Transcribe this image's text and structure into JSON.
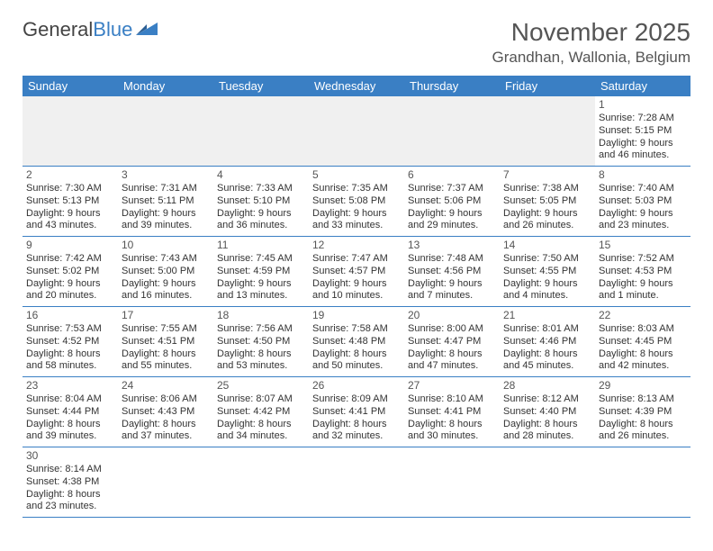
{
  "logo": {
    "text1": "General",
    "text2": "Blue"
  },
  "title": "November 2025",
  "location": "Grandhan, Wallonia, Belgium",
  "colors": {
    "header_bg": "#3a7fc4",
    "header_fg": "#ffffff",
    "grid_line": "#3a7fc4",
    "empty_bg": "#f0f0f0",
    "text": "#333333"
  },
  "weekdays": [
    "Sunday",
    "Monday",
    "Tuesday",
    "Wednesday",
    "Thursday",
    "Friday",
    "Saturday"
  ],
  "weeks": [
    [
      null,
      null,
      null,
      null,
      null,
      null,
      {
        "n": "1",
        "sr": "Sunrise: 7:28 AM",
        "ss": "Sunset: 5:15 PM",
        "d1": "Daylight: 9 hours",
        "d2": "and 46 minutes."
      }
    ],
    [
      {
        "n": "2",
        "sr": "Sunrise: 7:30 AM",
        "ss": "Sunset: 5:13 PM",
        "d1": "Daylight: 9 hours",
        "d2": "and 43 minutes."
      },
      {
        "n": "3",
        "sr": "Sunrise: 7:31 AM",
        "ss": "Sunset: 5:11 PM",
        "d1": "Daylight: 9 hours",
        "d2": "and 39 minutes."
      },
      {
        "n": "4",
        "sr": "Sunrise: 7:33 AM",
        "ss": "Sunset: 5:10 PM",
        "d1": "Daylight: 9 hours",
        "d2": "and 36 minutes."
      },
      {
        "n": "5",
        "sr": "Sunrise: 7:35 AM",
        "ss": "Sunset: 5:08 PM",
        "d1": "Daylight: 9 hours",
        "d2": "and 33 minutes."
      },
      {
        "n": "6",
        "sr": "Sunrise: 7:37 AM",
        "ss": "Sunset: 5:06 PM",
        "d1": "Daylight: 9 hours",
        "d2": "and 29 minutes."
      },
      {
        "n": "7",
        "sr": "Sunrise: 7:38 AM",
        "ss": "Sunset: 5:05 PM",
        "d1": "Daylight: 9 hours",
        "d2": "and 26 minutes."
      },
      {
        "n": "8",
        "sr": "Sunrise: 7:40 AM",
        "ss": "Sunset: 5:03 PM",
        "d1": "Daylight: 9 hours",
        "d2": "and 23 minutes."
      }
    ],
    [
      {
        "n": "9",
        "sr": "Sunrise: 7:42 AM",
        "ss": "Sunset: 5:02 PM",
        "d1": "Daylight: 9 hours",
        "d2": "and 20 minutes."
      },
      {
        "n": "10",
        "sr": "Sunrise: 7:43 AM",
        "ss": "Sunset: 5:00 PM",
        "d1": "Daylight: 9 hours",
        "d2": "and 16 minutes."
      },
      {
        "n": "11",
        "sr": "Sunrise: 7:45 AM",
        "ss": "Sunset: 4:59 PM",
        "d1": "Daylight: 9 hours",
        "d2": "and 13 minutes."
      },
      {
        "n": "12",
        "sr": "Sunrise: 7:47 AM",
        "ss": "Sunset: 4:57 PM",
        "d1": "Daylight: 9 hours",
        "d2": "and 10 minutes."
      },
      {
        "n": "13",
        "sr": "Sunrise: 7:48 AM",
        "ss": "Sunset: 4:56 PM",
        "d1": "Daylight: 9 hours",
        "d2": "and 7 minutes."
      },
      {
        "n": "14",
        "sr": "Sunrise: 7:50 AM",
        "ss": "Sunset: 4:55 PM",
        "d1": "Daylight: 9 hours",
        "d2": "and 4 minutes."
      },
      {
        "n": "15",
        "sr": "Sunrise: 7:52 AM",
        "ss": "Sunset: 4:53 PM",
        "d1": "Daylight: 9 hours",
        "d2": "and 1 minute."
      }
    ],
    [
      {
        "n": "16",
        "sr": "Sunrise: 7:53 AM",
        "ss": "Sunset: 4:52 PM",
        "d1": "Daylight: 8 hours",
        "d2": "and 58 minutes."
      },
      {
        "n": "17",
        "sr": "Sunrise: 7:55 AM",
        "ss": "Sunset: 4:51 PM",
        "d1": "Daylight: 8 hours",
        "d2": "and 55 minutes."
      },
      {
        "n": "18",
        "sr": "Sunrise: 7:56 AM",
        "ss": "Sunset: 4:50 PM",
        "d1": "Daylight: 8 hours",
        "d2": "and 53 minutes."
      },
      {
        "n": "19",
        "sr": "Sunrise: 7:58 AM",
        "ss": "Sunset: 4:48 PM",
        "d1": "Daylight: 8 hours",
        "d2": "and 50 minutes."
      },
      {
        "n": "20",
        "sr": "Sunrise: 8:00 AM",
        "ss": "Sunset: 4:47 PM",
        "d1": "Daylight: 8 hours",
        "d2": "and 47 minutes."
      },
      {
        "n": "21",
        "sr": "Sunrise: 8:01 AM",
        "ss": "Sunset: 4:46 PM",
        "d1": "Daylight: 8 hours",
        "d2": "and 45 minutes."
      },
      {
        "n": "22",
        "sr": "Sunrise: 8:03 AM",
        "ss": "Sunset: 4:45 PM",
        "d1": "Daylight: 8 hours",
        "d2": "and 42 minutes."
      }
    ],
    [
      {
        "n": "23",
        "sr": "Sunrise: 8:04 AM",
        "ss": "Sunset: 4:44 PM",
        "d1": "Daylight: 8 hours",
        "d2": "and 39 minutes."
      },
      {
        "n": "24",
        "sr": "Sunrise: 8:06 AM",
        "ss": "Sunset: 4:43 PM",
        "d1": "Daylight: 8 hours",
        "d2": "and 37 minutes."
      },
      {
        "n": "25",
        "sr": "Sunrise: 8:07 AM",
        "ss": "Sunset: 4:42 PM",
        "d1": "Daylight: 8 hours",
        "d2": "and 34 minutes."
      },
      {
        "n": "26",
        "sr": "Sunrise: 8:09 AM",
        "ss": "Sunset: 4:41 PM",
        "d1": "Daylight: 8 hours",
        "d2": "and 32 minutes."
      },
      {
        "n": "27",
        "sr": "Sunrise: 8:10 AM",
        "ss": "Sunset: 4:41 PM",
        "d1": "Daylight: 8 hours",
        "d2": "and 30 minutes."
      },
      {
        "n": "28",
        "sr": "Sunrise: 8:12 AM",
        "ss": "Sunset: 4:40 PM",
        "d1": "Daylight: 8 hours",
        "d2": "and 28 minutes."
      },
      {
        "n": "29",
        "sr": "Sunrise: 8:13 AM",
        "ss": "Sunset: 4:39 PM",
        "d1": "Daylight: 8 hours",
        "d2": "and 26 minutes."
      }
    ],
    [
      {
        "n": "30",
        "sr": "Sunrise: 8:14 AM",
        "ss": "Sunset: 4:38 PM",
        "d1": "Daylight: 8 hours",
        "d2": "and 23 minutes."
      },
      null,
      null,
      null,
      null,
      null,
      null
    ]
  ]
}
